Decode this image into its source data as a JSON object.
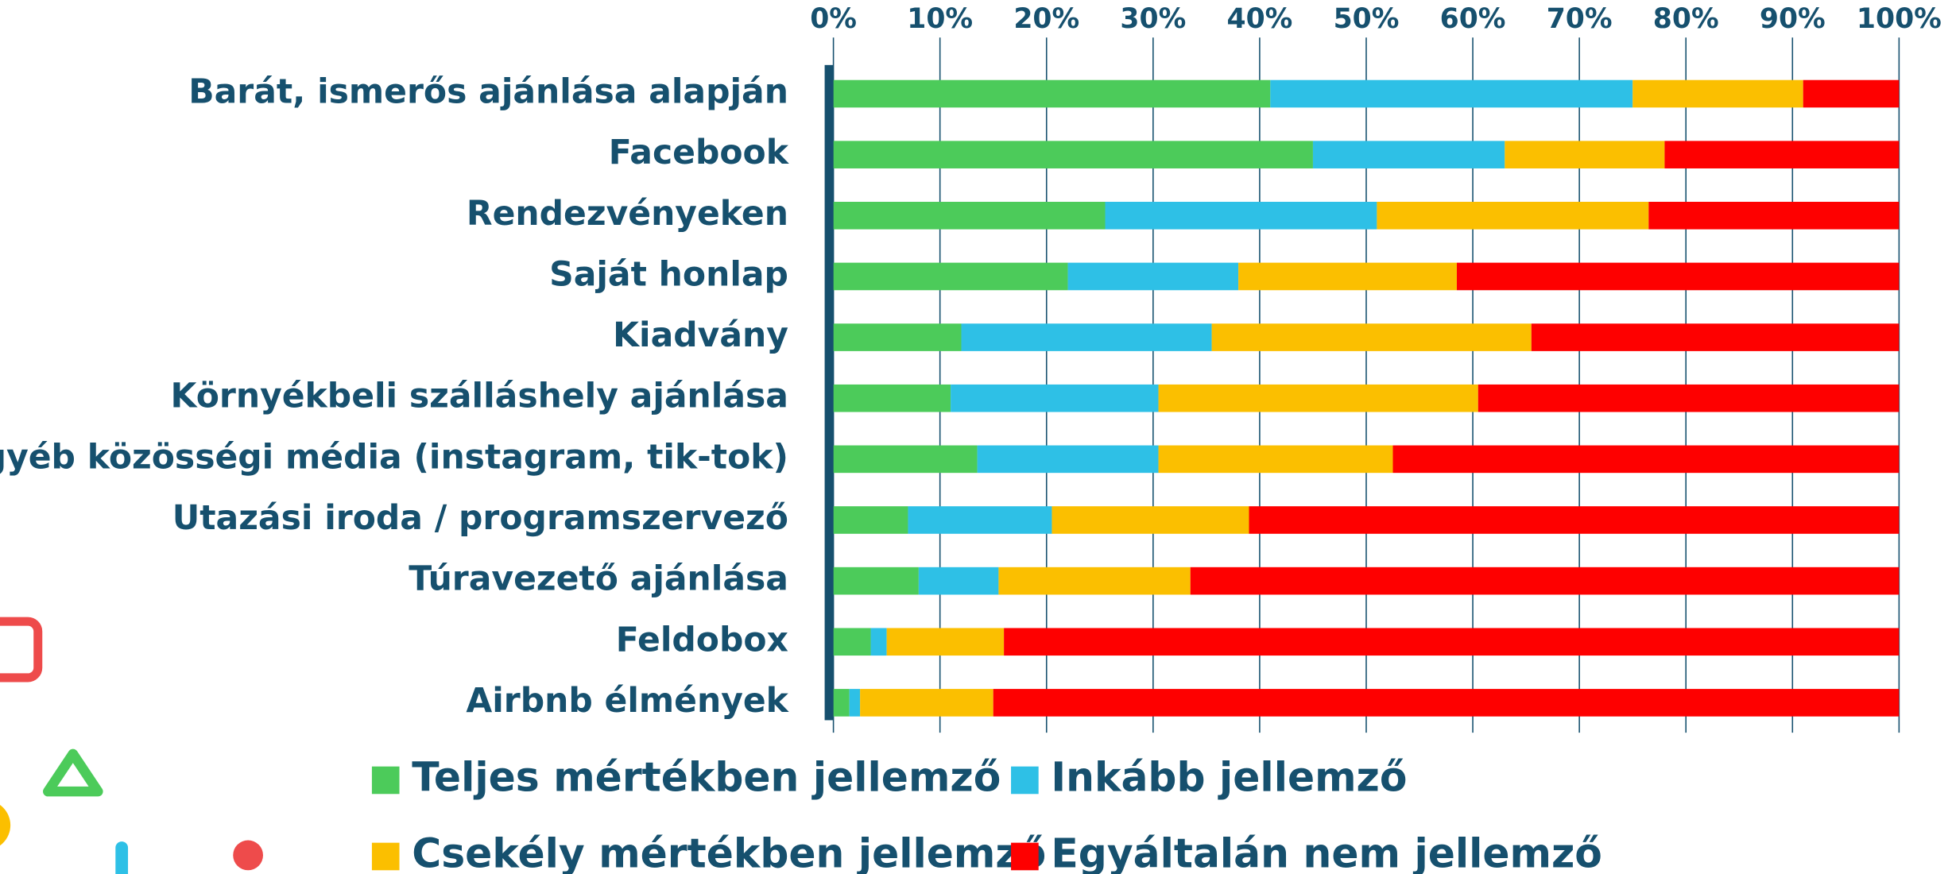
{
  "chart_data": {
    "type": "stacked-barh",
    "categories": [
      "Barát, ismerős ajánlása alapján",
      "Facebook",
      "Rendezvényeken",
      "Saját honlap",
      "Kiadvány",
      "Környékbeli szálláshely ajánlása",
      "Egyéb közösségi média  (instagram, tik-tok)",
      "Utazási iroda / programszervező",
      "Túravezető ajánlása",
      "Feldobox",
      "Airbnb élmények"
    ],
    "series": [
      {
        "name": "Teljes mértékben jellemző",
        "color": "#4ccb5a",
        "values": [
          41,
          45,
          25.5,
          22,
          12,
          11,
          13.5,
          7,
          8,
          3.5,
          1.5
        ]
      },
      {
        "name": "Inkább jellemző",
        "color": "#2ec0e6",
        "values": [
          34,
          18,
          25.5,
          16,
          23.5,
          19.5,
          17,
          13.5,
          7.5,
          1.5,
          1
        ]
      },
      {
        "name": "Csekély mértékben jellemző",
        "color": "#fbbf00",
        "values": [
          16,
          15,
          25.5,
          20.5,
          30,
          30,
          22,
          18.5,
          18,
          11,
          12.5
        ]
      },
      {
        "name": "Egyáltalán nem jellemző",
        "color": "#fe0000",
        "values": [
          9,
          22,
          23.5,
          41.5,
          34.5,
          39.5,
          47.5,
          61,
          66.5,
          84,
          85
        ]
      }
    ],
    "xlim": [
      0,
      100
    ],
    "xticks": [
      {
        "value": 0,
        "label": "0%"
      },
      {
        "value": 10,
        "label": "10%"
      },
      {
        "value": 20,
        "label": "20%"
      },
      {
        "value": 30,
        "label": "30%"
      },
      {
        "value": 40,
        "label": "40%"
      },
      {
        "value": 50,
        "label": "50%"
      },
      {
        "value": 60,
        "label": "60%"
      },
      {
        "value": 70,
        "label": "70%"
      },
      {
        "value": 80,
        "label": "80%"
      },
      {
        "value": 90,
        "label": "90%"
      },
      {
        "value": 100,
        "label": "100%"
      }
    ],
    "grid": true,
    "legend": "bottom"
  }
}
